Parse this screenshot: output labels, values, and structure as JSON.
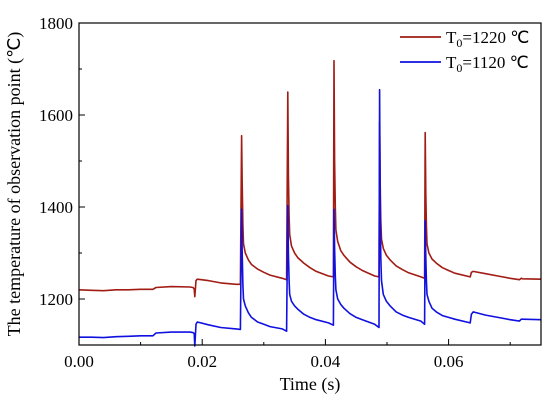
{
  "chart_data": {
    "type": "line",
    "xlabel": "Time (s)",
    "ylabel": "The temperature of observation point (℃)",
    "xlim": [
      0.0,
      0.075
    ],
    "ylim": [
      1100,
      1800
    ],
    "x_ticks": [
      "0.00",
      "0.02",
      "0.04",
      "0.06"
    ],
    "x_tick_values": [
      0.0,
      0.02,
      0.04,
      0.06
    ],
    "y_ticks": [
      "1200",
      "1400",
      "1600",
      "1800"
    ],
    "y_tick_values": [
      1200,
      1400,
      1600,
      1800
    ],
    "legend_position": "top-right",
    "grid": false,
    "series": [
      {
        "name_parts": [
          "T",
          "0",
          "=1220 ℃"
        ],
        "color": "#a01c14",
        "x": [
          0.0,
          0.002,
          0.004,
          0.006,
          0.008,
          0.01,
          0.012,
          0.0125,
          0.015,
          0.018,
          0.0185,
          0.0187,
          0.0188,
          0.019,
          0.0192,
          0.021,
          0.023,
          0.0255,
          0.0262,
          0.0264,
          0.0265,
          0.0266,
          0.0267,
          0.027,
          0.0275,
          0.028,
          0.029,
          0.03,
          0.031,
          0.033,
          0.0337,
          0.0339,
          0.034,
          0.0341,
          0.0342,
          0.0345,
          0.035,
          0.0355,
          0.0365,
          0.0375,
          0.0385,
          0.0405,
          0.0413,
          0.0414,
          0.0415,
          0.0416,
          0.0417,
          0.042,
          0.0425,
          0.043,
          0.044,
          0.045,
          0.046,
          0.048,
          0.0487,
          0.0488,
          0.0489,
          0.049,
          0.0491,
          0.0494,
          0.0499,
          0.0505,
          0.0515,
          0.0525,
          0.0535,
          0.0555,
          0.0561,
          0.0562,
          0.0563,
          0.0564,
          0.0565,
          0.0568,
          0.0573,
          0.058,
          0.059,
          0.06,
          0.061,
          0.0635,
          0.0637,
          0.064,
          0.066,
          0.068,
          0.07,
          0.0715,
          0.0718,
          0.072,
          0.075
        ],
        "values": [
          1220,
          1219,
          1218,
          1220,
          1220,
          1221,
          1221,
          1225,
          1227,
          1226,
          1225,
          1222,
          1205,
          1240,
          1243,
          1240,
          1235,
          1232,
          1232,
          1555,
          1450,
          1360,
          1320,
          1300,
          1285,
          1275,
          1265,
          1258,
          1252,
          1245,
          1242,
          1650,
          1470,
          1380,
          1340,
          1315,
          1300,
          1290,
          1278,
          1268,
          1260,
          1250,
          1248,
          1718,
          1500,
          1400,
          1350,
          1325,
          1305,
          1295,
          1280,
          1270,
          1262,
          1250,
          1248,
          1585,
          1450,
          1370,
          1330,
          1310,
          1295,
          1285,
          1272,
          1264,
          1257,
          1248,
          1245,
          1562,
          1430,
          1360,
          1320,
          1300,
          1287,
          1278,
          1268,
          1262,
          1256,
          1248,
          1258,
          1260,
          1255,
          1250,
          1245,
          1242,
          1245,
          1244,
          1243
        ]
      },
      {
        "name_parts": [
          "T",
          "0",
          "=1120 ℃"
        ],
        "color": "#1010e0",
        "x": [
          0.0,
          0.002,
          0.004,
          0.006,
          0.008,
          0.01,
          0.012,
          0.0125,
          0.015,
          0.018,
          0.0185,
          0.0187,
          0.0188,
          0.019,
          0.0192,
          0.021,
          0.023,
          0.0255,
          0.0262,
          0.0264,
          0.0265,
          0.0266,
          0.0267,
          0.027,
          0.0275,
          0.028,
          0.029,
          0.03,
          0.031,
          0.033,
          0.0337,
          0.0339,
          0.034,
          0.0341,
          0.0342,
          0.0345,
          0.035,
          0.0355,
          0.0365,
          0.0375,
          0.0385,
          0.0405,
          0.0413,
          0.0414,
          0.0415,
          0.0416,
          0.0417,
          0.042,
          0.0425,
          0.043,
          0.044,
          0.045,
          0.046,
          0.048,
          0.0487,
          0.0488,
          0.0489,
          0.049,
          0.0491,
          0.0494,
          0.0499,
          0.0505,
          0.0515,
          0.0525,
          0.0535,
          0.0555,
          0.0561,
          0.0562,
          0.0563,
          0.0564,
          0.0565,
          0.0568,
          0.0573,
          0.058,
          0.059,
          0.06,
          0.061,
          0.0635,
          0.0637,
          0.064,
          0.066,
          0.068,
          0.07,
          0.0715,
          0.0718,
          0.072,
          0.075
        ],
        "values": [
          1117,
          1117,
          1116,
          1118,
          1119,
          1120,
          1120,
          1126,
          1128,
          1128,
          1127,
          1125,
          1098,
          1145,
          1150,
          1144,
          1138,
          1135,
          1134,
          1395,
          1300,
          1230,
          1200,
          1185,
          1170,
          1160,
          1150,
          1145,
          1140,
          1135,
          1130,
          1403,
          1300,
          1240,
          1210,
          1195,
          1185,
          1178,
          1167,
          1160,
          1155,
          1148,
          1143,
          1395,
          1310,
          1250,
          1220,
          1200,
          1188,
          1180,
          1168,
          1160,
          1155,
          1145,
          1138,
          1655,
          1400,
          1290,
          1240,
          1210,
          1195,
          1185,
          1172,
          1165,
          1160,
          1152,
          1145,
          1370,
          1290,
          1240,
          1210,
          1195,
          1180,
          1172,
          1164,
          1160,
          1156,
          1148,
          1167,
          1172,
          1165,
          1160,
          1155,
          1152,
          1156,
          1156,
          1155
        ]
      }
    ]
  }
}
